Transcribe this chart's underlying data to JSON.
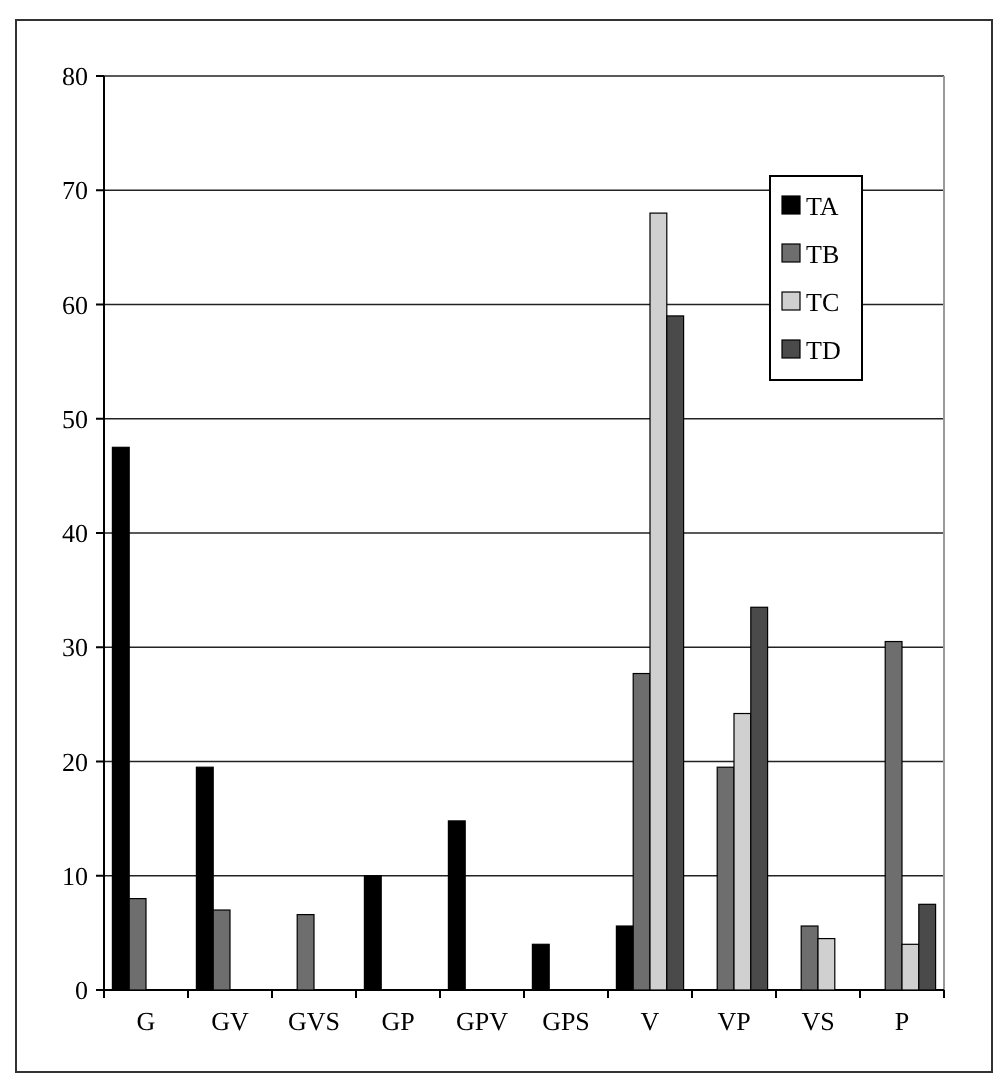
{
  "chart_data": {
    "type": "bar",
    "categories": [
      "G",
      "GV",
      "GVS",
      "GP",
      "GPV",
      "GPS",
      "V",
      "VP",
      "VS",
      "P"
    ],
    "series": [
      {
        "name": "TA",
        "color": "#000000",
        "values": [
          47.5,
          19.5,
          null,
          10,
          14.8,
          4,
          5.6,
          null,
          null,
          null
        ]
      },
      {
        "name": "TB",
        "color": "#6e6e6e",
        "values": [
          8,
          7,
          6.6,
          null,
          null,
          null,
          27.7,
          19.5,
          5.6,
          30.5
        ]
      },
      {
        "name": "TC",
        "color": "#d0d0d0",
        "values": [
          null,
          null,
          null,
          null,
          null,
          null,
          68,
          24.2,
          4.5,
          4
        ]
      },
      {
        "name": "TD",
        "color": "#4a4a4a",
        "values": [
          null,
          null,
          null,
          null,
          null,
          null,
          59,
          33.5,
          null,
          7.5
        ]
      }
    ],
    "ylim": [
      0,
      80
    ],
    "yticks": [
      0,
      10,
      20,
      30,
      40,
      50,
      60,
      70,
      80
    ],
    "grid": "y",
    "legend": "top right"
  }
}
